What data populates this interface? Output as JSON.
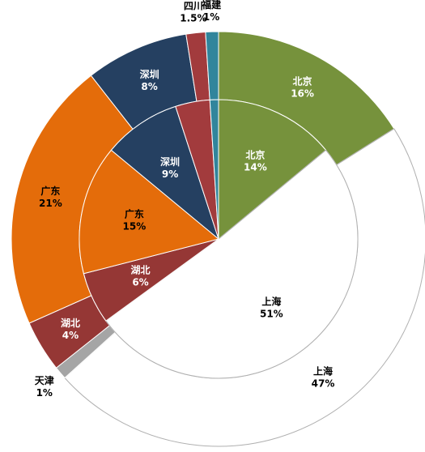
{
  "chart_data": {
    "type": "nested-pie",
    "rings": [
      {
        "categories": [
          "北京",
          "上海",
          "天津",
          "湖北",
          "广东",
          "深圳",
          "四川",
          "福建"
        ],
        "values": [
          16,
          47,
          1,
          4,
          21,
          8,
          1.5,
          1
        ],
        "value_labels": [
          "16%",
          "47%",
          "1%",
          "4%",
          "21%",
          "8%",
          "1.5%",
          "1%"
        ],
        "colors": [
          "#76923c",
          "#ffffff",
          "#a5a5a5",
          "#953735",
          "#e46c0a",
          "#254061",
          "#a23b3d",
          "#31859c"
        ]
      },
      {
        "categories": [
          "北京",
          "上海",
          "湖北",
          "广东",
          "深圳",
          null,
          null
        ],
        "values": [
          14,
          51,
          6,
          15,
          9,
          4,
          1
        ],
        "value_labels": [
          "14%",
          "51%",
          "6%",
          "15%",
          "9%",
          null,
          null
        ],
        "colors": [
          "#76923c",
          "#ffffff",
          "#953735",
          "#e46c0a",
          "#254061",
          "#a23b3d",
          "#31859c"
        ]
      }
    ]
  }
}
